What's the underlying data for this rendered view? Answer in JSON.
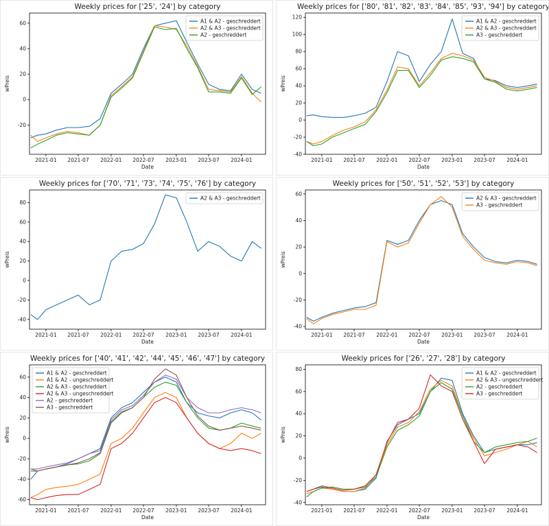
{
  "chart_data": [
    {
      "type": "line",
      "title": "Weekly prices for ['25', '24'] by category",
      "xlabel": "Date",
      "ylabel": "wPreis",
      "x_ticks": [
        "2021-01",
        "2021-07",
        "2022-01",
        "2022-07",
        "2023-01",
        "2023-07",
        "2024-01"
      ],
      "y_ticks": [
        -20,
        0,
        20,
        40,
        60
      ],
      "ylim": [
        -43,
        68
      ],
      "xlim": [
        "2020-10-01",
        "2024-05-15"
      ],
      "legend_position": "upper right",
      "x": [
        "2020-10-08",
        "2020-11-15",
        "2021-01-01",
        "2021-03-01",
        "2021-05-01",
        "2021-07-01",
        "2021-09-01",
        "2021-11-01",
        "2022-01-01",
        "2022-03-01",
        "2022-05-01",
        "2022-07-01",
        "2022-09-01",
        "2022-11-01",
        "2023-01-01",
        "2023-03-01",
        "2023-05-01",
        "2023-07-01",
        "2023-09-01",
        "2023-11-01",
        "2024-01-01",
        "2024-03-01",
        "2024-04-20"
      ],
      "series": [
        {
          "name": "A1 & A2 -  geschreddert",
          "color": "#1f77b4",
          "values": [
            -30,
            -28,
            -27,
            -24,
            -22,
            -22,
            -21,
            -15,
            5,
            12,
            20,
            40,
            58,
            60,
            62,
            45,
            28,
            12,
            8,
            7,
            20,
            8,
            5
          ]
        },
        {
          "name": "A2 & A3 -  geschreddert",
          "color": "#ff7f0e",
          "values": [
            -28,
            -33,
            -30,
            -27,
            -25,
            -26,
            -28,
            -20,
            3,
            10,
            18,
            38,
            58,
            57,
            55,
            42,
            26,
            8,
            7,
            6,
            18,
            5,
            -2
          ]
        },
        {
          "name": "A2 -  geschreddert",
          "color": "#2ca02c",
          "values": [
            -38,
            -35,
            -32,
            -28,
            -26,
            -27,
            -28,
            -20,
            2,
            9,
            17,
            37,
            57,
            55,
            56,
            40,
            25,
            6,
            6,
            5,
            17,
            4,
            10
          ]
        }
      ]
    },
    {
      "type": "line",
      "title": "Weekly prices for ['80', '81', '82', '83', '84', '85', '93', '94'] by category",
      "xlabel": "Date",
      "ylabel": "wPreis",
      "x_ticks": [
        "2021-01",
        "2021-07",
        "2022-01",
        "2022-07",
        "2023-01",
        "2023-07",
        "2024-01"
      ],
      "y_ticks": [
        -40,
        -20,
        0,
        20,
        40,
        60,
        80,
        100,
        120
      ],
      "ylim": [
        -40,
        125
      ],
      "xlim": [
        "2020-10-01",
        "2024-05-15"
      ],
      "legend_position": "upper right",
      "x": [
        "2020-10-08",
        "2020-11-15",
        "2021-01-01",
        "2021-03-01",
        "2021-05-01",
        "2021-07-01",
        "2021-09-01",
        "2021-11-01",
        "2022-01-01",
        "2022-03-01",
        "2022-05-01",
        "2022-07-01",
        "2022-09-01",
        "2022-11-01",
        "2023-01-01",
        "2023-03-01",
        "2023-05-01",
        "2023-07-01",
        "2023-09-01",
        "2023-11-01",
        "2024-01-01",
        "2024-03-01",
        "2024-04-20"
      ],
      "series": [
        {
          "name": "A1 & A2 -  geschreddert",
          "color": "#1f77b4",
          "values": [
            5,
            6,
            4,
            3,
            3,
            5,
            8,
            15,
            45,
            80,
            75,
            45,
            65,
            80,
            118,
            78,
            72,
            48,
            46,
            40,
            38,
            40,
            42
          ]
        },
        {
          "name": "A2 & A3 -  geschreddert",
          "color": "#ff7f0e",
          "values": [
            -25,
            -28,
            -25,
            -18,
            -12,
            -8,
            -2,
            12,
            35,
            62,
            60,
            40,
            55,
            72,
            78,
            75,
            70,
            50,
            45,
            38,
            36,
            38,
            40
          ]
        },
        {
          "name": "A3 -  geschreddert",
          "color": "#2ca02c",
          "values": [
            -25,
            -30,
            -28,
            -20,
            -15,
            -10,
            -5,
            10,
            32,
            58,
            58,
            38,
            52,
            70,
            74,
            72,
            68,
            48,
            44,
            36,
            34,
            36,
            38
          ]
        }
      ]
    },
    {
      "type": "line",
      "title": "Weekly prices for ['70', '71', '73', '74', '75', '76'] by category",
      "xlabel": "Date",
      "ylabel": "wPreis",
      "x_ticks": [
        "2021-01",
        "2021-07",
        "2022-01",
        "2022-07",
        "2023-01",
        "2023-07",
        "2024-01"
      ],
      "y_ticks": [
        -40,
        -20,
        0,
        20,
        40,
        60,
        80
      ],
      "ylim": [
        -50,
        93
      ],
      "xlim": [
        "2020-10-01",
        "2024-05-15"
      ],
      "legend_position": "upper right",
      "x": [
        "2020-10-08",
        "2020-11-15",
        "2021-01-01",
        "2021-03-01",
        "2021-05-01",
        "2021-07-01",
        "2021-09-01",
        "2021-11-01",
        "2022-01-01",
        "2022-03-01",
        "2022-05-01",
        "2022-07-01",
        "2022-09-01",
        "2022-11-01",
        "2023-01-01",
        "2023-03-01",
        "2023-05-01",
        "2023-07-01",
        "2023-09-01",
        "2023-11-01",
        "2024-01-01",
        "2024-03-01",
        "2024-04-20"
      ],
      "series": [
        {
          "name": "A2 & A3 -  geschreddert",
          "color": "#1f77b4",
          "values": [
            -35,
            -40,
            -30,
            -25,
            -20,
            -15,
            -25,
            -20,
            20,
            30,
            32,
            38,
            58,
            88,
            85,
            60,
            30,
            40,
            35,
            25,
            20,
            40,
            33
          ]
        }
      ]
    },
    {
      "type": "line",
      "title": "Weekly prices for ['50', '51', '52', '53'] by category",
      "xlabel": "Date",
      "ylabel": "wPreis",
      "x_ticks": [
        "2021-01",
        "2021-07",
        "2022-01",
        "2022-07",
        "2023-01",
        "2023-07",
        "2024-01"
      ],
      "y_ticks": [
        -40,
        -20,
        0,
        20,
        40,
        60
      ],
      "ylim": [
        -42,
        63
      ],
      "xlim": [
        "2020-10-01",
        "2024-05-15"
      ],
      "legend_position": "upper right",
      "x": [
        "2020-10-08",
        "2020-11-15",
        "2021-01-01",
        "2021-03-01",
        "2021-05-01",
        "2021-07-01",
        "2021-09-01",
        "2021-11-01",
        "2022-01-01",
        "2022-03-01",
        "2022-05-01",
        "2022-07-01",
        "2022-09-01",
        "2022-11-01",
        "2023-01-01",
        "2023-03-01",
        "2023-05-01",
        "2023-07-01",
        "2023-09-01",
        "2023-11-01",
        "2024-01-01",
        "2024-03-01",
        "2024-04-20"
      ],
      "series": [
        {
          "name": "A2 & A3 -  geschreddert",
          "color": "#1f77b4",
          "values": [
            -33,
            -36,
            -33,
            -30,
            -28,
            -26,
            -25,
            -22,
            25,
            22,
            25,
            40,
            52,
            55,
            52,
            30,
            20,
            12,
            9,
            8,
            10,
            9,
            7
          ]
        },
        {
          "name": "A3 -  geschreddert",
          "color": "#ff7f0e",
          "values": [
            -34,
            -38,
            -34,
            -31,
            -29,
            -27,
            -27,
            -24,
            24,
            20,
            23,
            38,
            52,
            58,
            50,
            28,
            18,
            10,
            8,
            7,
            9,
            8,
            6
          ]
        }
      ]
    },
    {
      "type": "line",
      "title": "Weekly prices for ['40', '41', '42', '44', '45', '46', '47'] by category",
      "xlabel": "Date",
      "ylabel": "wPreis",
      "x_ticks": [
        "2021-01",
        "2021-07",
        "2022-01",
        "2022-07",
        "2023-01",
        "2023-07",
        "2024-01"
      ],
      "y_ticks": [
        -60,
        -40,
        -20,
        0,
        20,
        40,
        60
      ],
      "ylim": [
        -65,
        72
      ],
      "xlim": [
        "2020-10-01",
        "2024-05-15"
      ],
      "legend_position": "upper left",
      "x": [
        "2020-10-08",
        "2020-11-15",
        "2021-01-01",
        "2021-03-01",
        "2021-05-01",
        "2021-07-01",
        "2021-09-01",
        "2021-11-01",
        "2022-01-01",
        "2022-03-01",
        "2022-05-01",
        "2022-07-01",
        "2022-09-01",
        "2022-11-01",
        "2023-01-01",
        "2023-03-01",
        "2023-05-01",
        "2023-07-01",
        "2023-09-01",
        "2023-11-01",
        "2024-01-01",
        "2024-03-01",
        "2024-04-20"
      ],
      "series": [
        {
          "name": "A1 & A2 -  geschreddert",
          "color": "#1f77b4",
          "values": [
            -40,
            -32,
            -30,
            -28,
            -25,
            -20,
            -15,
            -10,
            20,
            30,
            35,
            45,
            55,
            60,
            55,
            35,
            25,
            22,
            20,
            25,
            28,
            25,
            18
          ]
        },
        {
          "name": "A1 & A2 -  ungeschreddert",
          "color": "#ff7f0e",
          "values": [
            -58,
            -55,
            -50,
            -48,
            -47,
            -45,
            -40,
            -35,
            -5,
            0,
            10,
            25,
            40,
            45,
            40,
            20,
            5,
            -5,
            -10,
            -5,
            5,
            0,
            5
          ]
        },
        {
          "name": "A2 & A3 -  geschreddert",
          "color": "#2ca02c",
          "values": [
            -30,
            -32,
            -30,
            -28,
            -26,
            -25,
            -22,
            -15,
            15,
            25,
            30,
            40,
            50,
            55,
            52,
            35,
            20,
            10,
            8,
            10,
            15,
            12,
            10
          ]
        },
        {
          "name": "A2 & A3 -  ungeschreddert",
          "color": "#d62728",
          "values": [
            -58,
            -60,
            -58,
            -56,
            -55,
            -55,
            -50,
            -45,
            -10,
            -5,
            5,
            20,
            35,
            40,
            35,
            20,
            5,
            -5,
            -10,
            -12,
            -10,
            -12,
            -15
          ]
        },
        {
          "name": "A2 -  geschreddert",
          "color": "#9467bd",
          "values": [
            -30,
            -30,
            -28,
            -26,
            -24,
            -20,
            -15,
            -12,
            18,
            28,
            32,
            42,
            55,
            62,
            58,
            40,
            30,
            25,
            25,
            28,
            30,
            28,
            25
          ]
        },
        {
          "name": "A3 -  geschreddert",
          "color": "#8c564b",
          "values": [
            -32,
            -32,
            -30,
            -28,
            -26,
            -24,
            -20,
            -14,
            16,
            26,
            30,
            40,
            58,
            68,
            62,
            40,
            22,
            12,
            8,
            10,
            12,
            10,
            8
          ]
        }
      ]
    },
    {
      "type": "line",
      "title": "Weekly prices for ['26', '27', '28'] by category",
      "xlabel": "Date",
      "ylabel": "wPreis",
      "x_ticks": [
        "2021-01",
        "2021-07",
        "2022-01",
        "2022-07",
        "2023-01",
        "2023-07",
        "2024-01"
      ],
      "y_ticks": [
        -40,
        -20,
        0,
        20,
        40,
        60,
        80
      ],
      "ylim": [
        -42,
        84
      ],
      "xlim": [
        "2020-10-01",
        "2024-05-15"
      ],
      "legend_position": "upper right",
      "x": [
        "2020-10-08",
        "2020-11-15",
        "2021-01-01",
        "2021-03-01",
        "2021-05-01",
        "2021-07-01",
        "2021-09-01",
        "2021-11-01",
        "2022-01-01",
        "2022-03-01",
        "2022-05-01",
        "2022-07-01",
        "2022-09-01",
        "2022-11-01",
        "2023-01-01",
        "2023-03-01",
        "2023-05-01",
        "2023-07-01",
        "2023-09-01",
        "2023-11-01",
        "2024-01-01",
        "2024-03-01",
        "2024-04-20"
      ],
      "series": [
        {
          "name": "A1 & A2 -  geschreddert",
          "color": "#1f77b4",
          "values": [
            -30,
            -28,
            -26,
            -28,
            -30,
            -30,
            -28,
            -18,
            15,
            30,
            35,
            40,
            60,
            72,
            70,
            40,
            20,
            5,
            8,
            10,
            12,
            12,
            14
          ]
        },
        {
          "name": "A2 & A3 -  ungeschreddert",
          "color": "#ff7f0e",
          "values": [
            -32,
            -30,
            -27,
            -28,
            -30,
            -30,
            -27,
            -15,
            12,
            28,
            32,
            42,
            62,
            70,
            65,
            38,
            18,
            2,
            5,
            8,
            12,
            15,
            10
          ]
        },
        {
          "name": "A2 -  geschreddert",
          "color": "#2ca02c",
          "values": [
            -35,
            -30,
            -27,
            -26,
            -28,
            -28,
            -26,
            -17,
            10,
            25,
            30,
            38,
            60,
            68,
            62,
            38,
            15,
            5,
            10,
            12,
            14,
            15,
            18
          ]
        },
        {
          "name": "A3 -  geschreddert",
          "color": "#d62728",
          "values": [
            -30,
            -28,
            -25,
            -27,
            -29,
            -28,
            -25,
            -15,
            14,
            32,
            35,
            45,
            75,
            65,
            60,
            35,
            15,
            -5,
            8,
            10,
            12,
            10,
            5
          ]
        }
      ]
    }
  ]
}
